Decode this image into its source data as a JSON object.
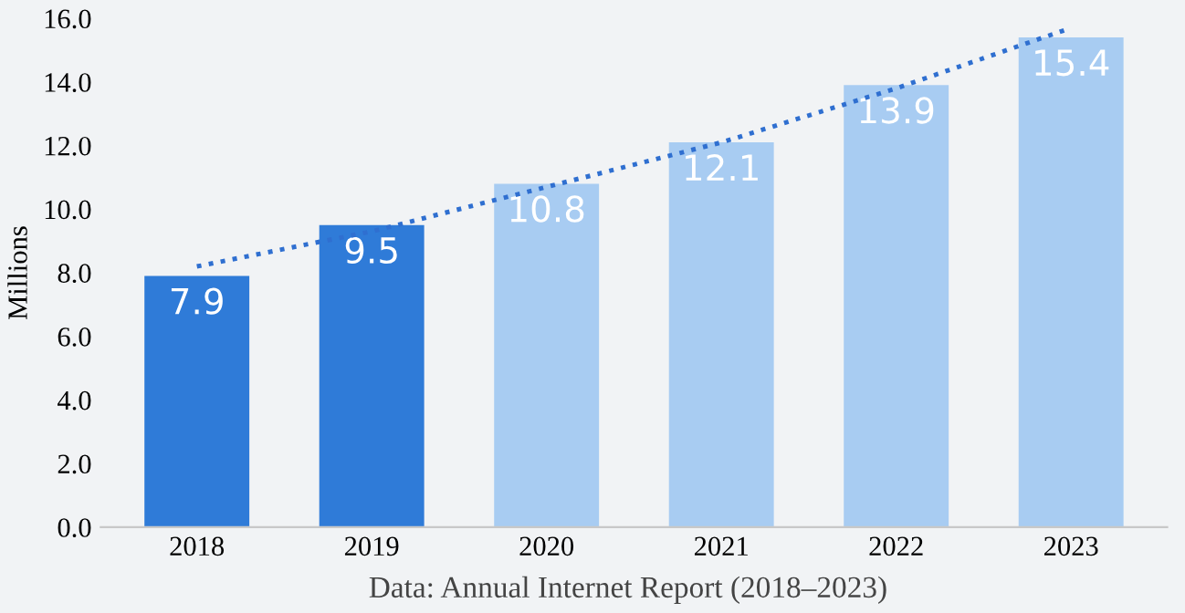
{
  "chart_data": {
    "type": "bar",
    "ylabel": "Millions",
    "categories": [
      "2018",
      "2019",
      "2020",
      "2021",
      "2022",
      "2023"
    ],
    "series": [
      {
        "colors": [
          "#2f7bd8",
          "#2f7bd8",
          "#a8ccf2",
          "#a8ccf2",
          "#a8ccf2",
          "#a8ccf2"
        ],
        "values": [
          7.9,
          9.5,
          10.8,
          12.1,
          13.9,
          15.4
        ],
        "value_labels": [
          "7.9",
          "9.5",
          "10.8",
          "12.1",
          "13.9",
          "15.4"
        ]
      },
      {
        "type": "line",
        "color": "#2f6fd0",
        "line_style": "dotted",
        "values": [
          8.2,
          9.3,
          10.7,
          12.1,
          13.8,
          15.7
        ]
      }
    ],
    "ylim": [
      0,
      16
    ],
    "yticks": [
      {
        "value": 0,
        "label": "0.0"
      },
      {
        "value": 2,
        "label": "2.0"
      },
      {
        "value": 4,
        "label": "4.0"
      },
      {
        "value": 6,
        "label": "6.0"
      },
      {
        "value": 8,
        "label": "8.0"
      },
      {
        "value": 10,
        "label": "10.0"
      },
      {
        "value": 12,
        "label": "12.0"
      },
      {
        "value": 14,
        "label": "14.0"
      },
      {
        "value": 16,
        "label": "16.0"
      }
    ],
    "grid": false,
    "annotations": [
      "Data: Annual Internet Report (2018–2023)"
    ]
  }
}
